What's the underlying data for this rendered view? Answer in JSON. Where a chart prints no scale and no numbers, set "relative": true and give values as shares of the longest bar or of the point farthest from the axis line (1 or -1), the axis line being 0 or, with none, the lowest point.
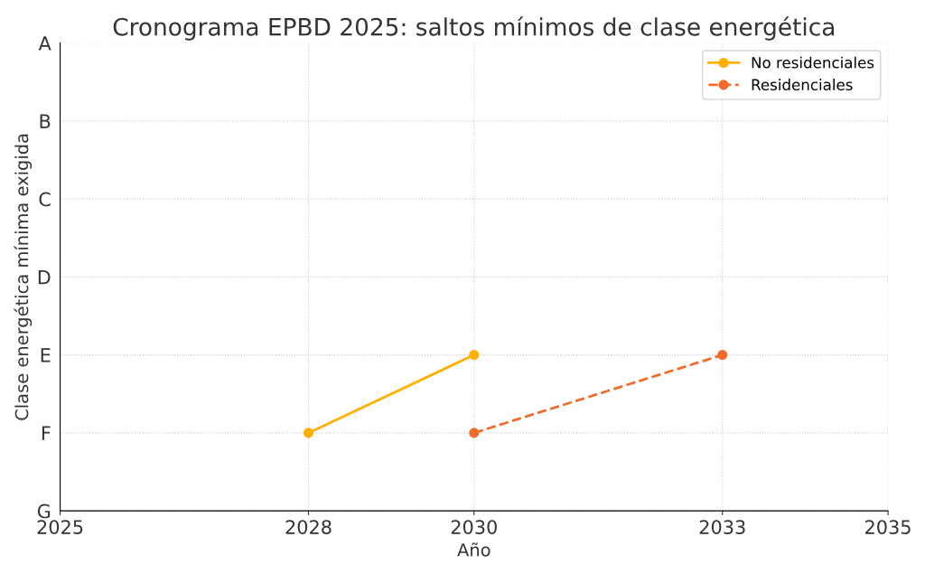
{
  "chart_data": {
    "type": "line",
    "title": "Cronograma EPBD 2025: saltos mínimos de clase energética",
    "xlabel": "Año",
    "ylabel": "Clase energética mínima exigida",
    "series": [
      {
        "name": "No residenciales",
        "color": "#ffb000",
        "x": [
          2028,
          2030
        ],
        "values": [
          0.5,
          1
        ],
        "line_style": "solid"
      },
      {
        "name": "Residenciales",
        "color": "#f26b2a",
        "x": [
          2030,
          2033
        ],
        "values": [
          0.5,
          1
        ],
        "line_style": "dashed"
      }
    ],
    "relative": true,
    "xlim": [
      2025,
      2035
    ],
    "xticks": [
      2025,
      2028,
      2030,
      2033,
      2035
    ],
    "ylim": [
      0,
      3
    ],
    "y_categories": [
      "A",
      "B",
      "C",
      "D",
      "E",
      "F",
      "G"
    ],
    "grid": true,
    "legend": "top right",
    "marker": "circle"
  }
}
